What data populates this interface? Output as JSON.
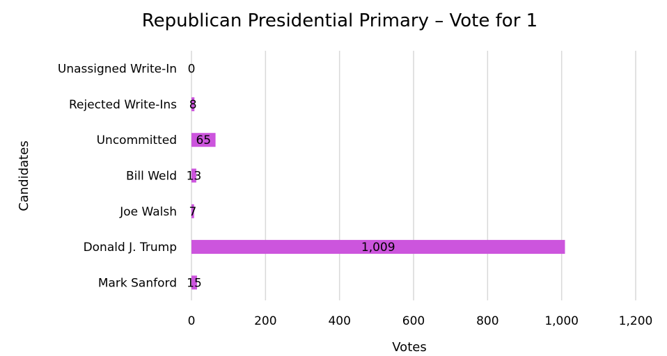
{
  "chart_data": {
    "type": "bar",
    "orientation": "horizontal",
    "title": "Republican Presidential Primary – Vote for 1",
    "xlabel": "Votes",
    "ylabel": "Candidates",
    "categories": [
      "Mark Sanford",
      "Donald J. Trump",
      "Joe Walsh",
      "Bill Weld",
      "Uncommitted",
      "Rejected Write-Ins",
      "Unassigned Write-In"
    ],
    "values": [
      15,
      1009,
      7,
      13,
      65,
      8,
      0
    ],
    "data_labels": [
      "15",
      "1,009",
      "7",
      "13",
      "65",
      "8",
      "0"
    ],
    "xlim": [
      0,
      1200
    ],
    "x_ticks": [
      0,
      200,
      400,
      600,
      800,
      1000,
      1200
    ],
    "x_tick_labels": [
      "0",
      "200",
      "400",
      "600",
      "800",
      "1,000",
      "1,200"
    ],
    "grid": "vertical",
    "legend": "none",
    "bar_color": "#CC55DD",
    "gridline_color": "#D9D9D9"
  }
}
